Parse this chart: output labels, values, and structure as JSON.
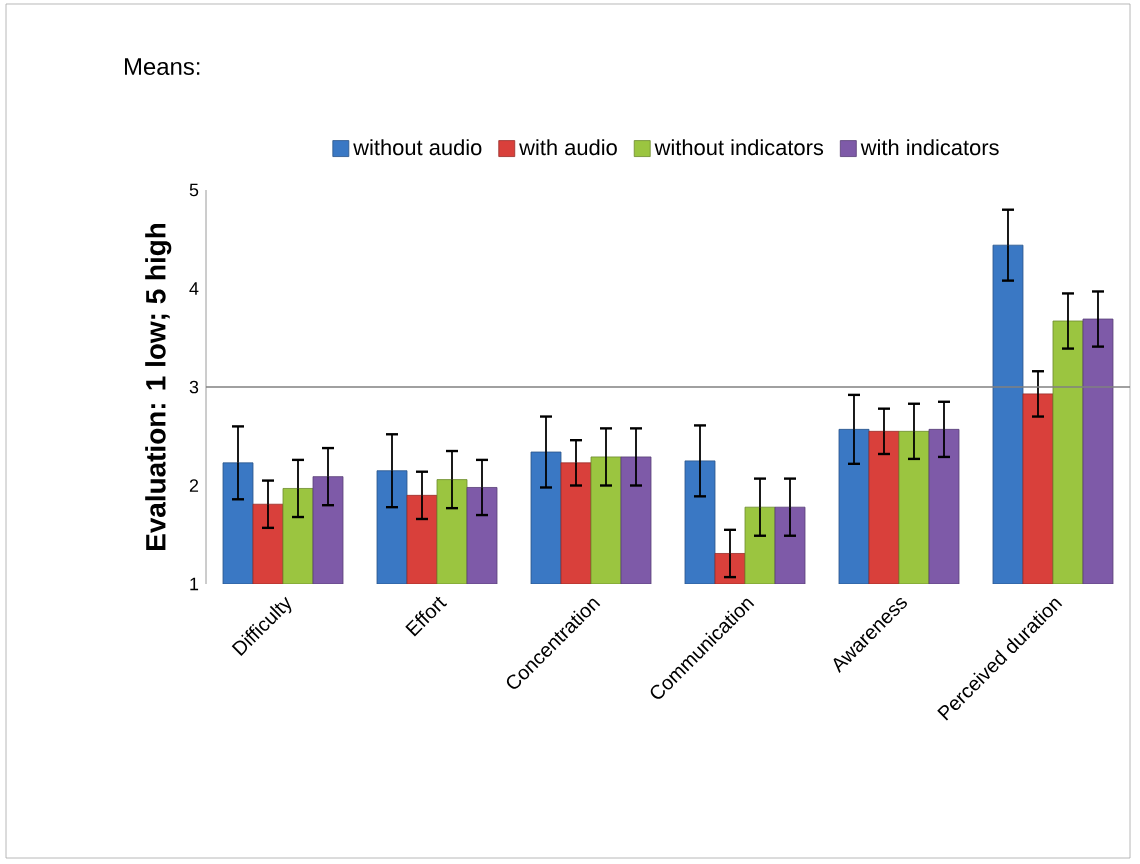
{
  "chart_data": {
    "type": "bar",
    "title": "Means:",
    "ylabel": "Evaluation: 1 low; 5 high",
    "categories": [
      "Difficulty",
      "Effort",
      "Concentration",
      "Communication",
      "Awareness",
      "Perceived duration"
    ],
    "series": [
      {
        "name": "without audio",
        "color": "#3a78c4",
        "values": [
          2.23,
          2.15,
          2.34,
          2.25,
          2.57,
          4.44
        ],
        "errors": [
          0.37,
          0.37,
          0.36,
          0.36,
          0.35,
          0.36
        ]
      },
      {
        "name": "with audio",
        "color": "#d9403b",
        "values": [
          1.81,
          1.9,
          2.23,
          1.31,
          2.55,
          2.93
        ],
        "errors": [
          0.24,
          0.24,
          0.23,
          0.24,
          0.23,
          0.23
        ]
      },
      {
        "name": "without indicators",
        "color": "#9bc540",
        "values": [
          1.97,
          2.06,
          2.29,
          1.78,
          2.55,
          3.67
        ],
        "errors": [
          0.29,
          0.29,
          0.29,
          0.29,
          0.28,
          0.28
        ]
      },
      {
        "name": "with indicators",
        "color": "#7e5aa8",
        "values": [
          2.09,
          1.98,
          2.29,
          1.78,
          2.57,
          3.69
        ],
        "errors": [
          0.29,
          0.28,
          0.29,
          0.29,
          0.28,
          0.28
        ]
      }
    ],
    "ylim": [
      1,
      5
    ],
    "yticks": [
      1,
      2,
      3,
      4,
      5
    ],
    "legend": "top",
    "ref_lines": [
      {
        "axis": "y",
        "value": 3,
        "color": "#808080"
      }
    ]
  }
}
